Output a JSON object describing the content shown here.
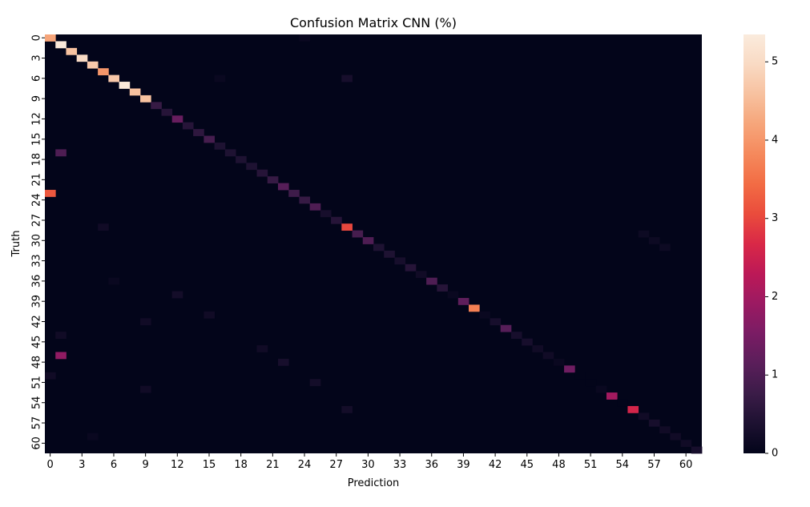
{
  "chart_data": {
    "type": "heatmap",
    "title": "Confusion Matrix CNN (%)",
    "xlabel": "Prediction",
    "ylabel": "Truth",
    "n_classes": 62,
    "x_tick_labels": [
      "0",
      "3",
      "6",
      "9",
      "12",
      "15",
      "18",
      "21",
      "24",
      "27",
      "30",
      "33",
      "36",
      "39",
      "42",
      "45",
      "48",
      "51",
      "54",
      "57",
      "60"
    ],
    "y_tick_labels": [
      "0",
      "3",
      "6",
      "9",
      "12",
      "15",
      "18",
      "21",
      "24",
      "27",
      "30",
      "33",
      "36",
      "39",
      "42",
      "45",
      "48",
      "51",
      "54",
      "57",
      "60"
    ],
    "colorbar": {
      "min": 0,
      "max": 5.35,
      "ticks": [
        0,
        1,
        2,
        3,
        4,
        5
      ]
    },
    "colormap": [
      "#03051a",
      "#1d1131",
      "#3b1c48",
      "#5a1e5a",
      "#7a1c64",
      "#9b1a62",
      "#bc1957",
      "#d92847",
      "#ea4c3c",
      "#f26c44",
      "#f5895c",
      "#f6a57a",
      "#f7c19f",
      "#f9dac3",
      "#faebdd"
    ],
    "diagonal_values": [
      4.2,
      5.3,
      4.6,
      5.0,
      4.7,
      4.0,
      4.7,
      5.3,
      4.6,
      4.6,
      0.7,
      0.5,
      1.3,
      0.5,
      0.6,
      0.9,
      0.4,
      0.4,
      0.4,
      0.4,
      0.5,
      0.7,
      1.1,
      0.8,
      0.7,
      1.0,
      0.3,
      0.5,
      3.0,
      0.9,
      1.0,
      0.4,
      0.4,
      0.3,
      0.5,
      0.2,
      1.0,
      0.5,
      0.1,
      1.2,
      3.7,
      0.1,
      0.3,
      1.1,
      0.3,
      0.3,
      0.2,
      0.2,
      0.1,
      1.4,
      0.0,
      0.0,
      0.1,
      2.0,
      0.0,
      2.6,
      0.2,
      0.3,
      0.2,
      0.2,
      0.2,
      0.3
    ],
    "off_diagonal": [
      {
        "truth": 0,
        "prediction": 24,
        "value": 0.1
      },
      {
        "truth": 6,
        "prediction": 28,
        "value": 0.3
      },
      {
        "truth": 6,
        "prediction": 16,
        "value": 0.1
      },
      {
        "truth": 17,
        "prediction": 1,
        "value": 1.0
      },
      {
        "truth": 23,
        "prediction": 0,
        "value": 3.2
      },
      {
        "truth": 28,
        "prediction": 5,
        "value": 0.2
      },
      {
        "truth": 29,
        "prediction": 56,
        "value": 0.15
      },
      {
        "truth": 30,
        "prediction": 57,
        "value": 0.15
      },
      {
        "truth": 31,
        "prediction": 58,
        "value": 0.15
      },
      {
        "truth": 36,
        "prediction": 6,
        "value": 0.1
      },
      {
        "truth": 38,
        "prediction": 12,
        "value": 0.25
      },
      {
        "truth": 41,
        "prediction": 15,
        "value": 0.2
      },
      {
        "truth": 42,
        "prediction": 9,
        "value": 0.2
      },
      {
        "truth": 44,
        "prediction": 1,
        "value": 0.2
      },
      {
        "truth": 46,
        "prediction": 20,
        "value": 0.2
      },
      {
        "truth": 47,
        "prediction": 1,
        "value": 1.8
      },
      {
        "truth": 48,
        "prediction": 22,
        "value": 0.3
      },
      {
        "truth": 50,
        "prediction": 0,
        "value": 0.2
      },
      {
        "truth": 51,
        "prediction": 25,
        "value": 0.25
      },
      {
        "truth": 52,
        "prediction": 9,
        "value": 0.2
      },
      {
        "truth": 55,
        "prediction": 28,
        "value": 0.25
      },
      {
        "truth": 59,
        "prediction": 4,
        "value": 0.1
      }
    ]
  }
}
